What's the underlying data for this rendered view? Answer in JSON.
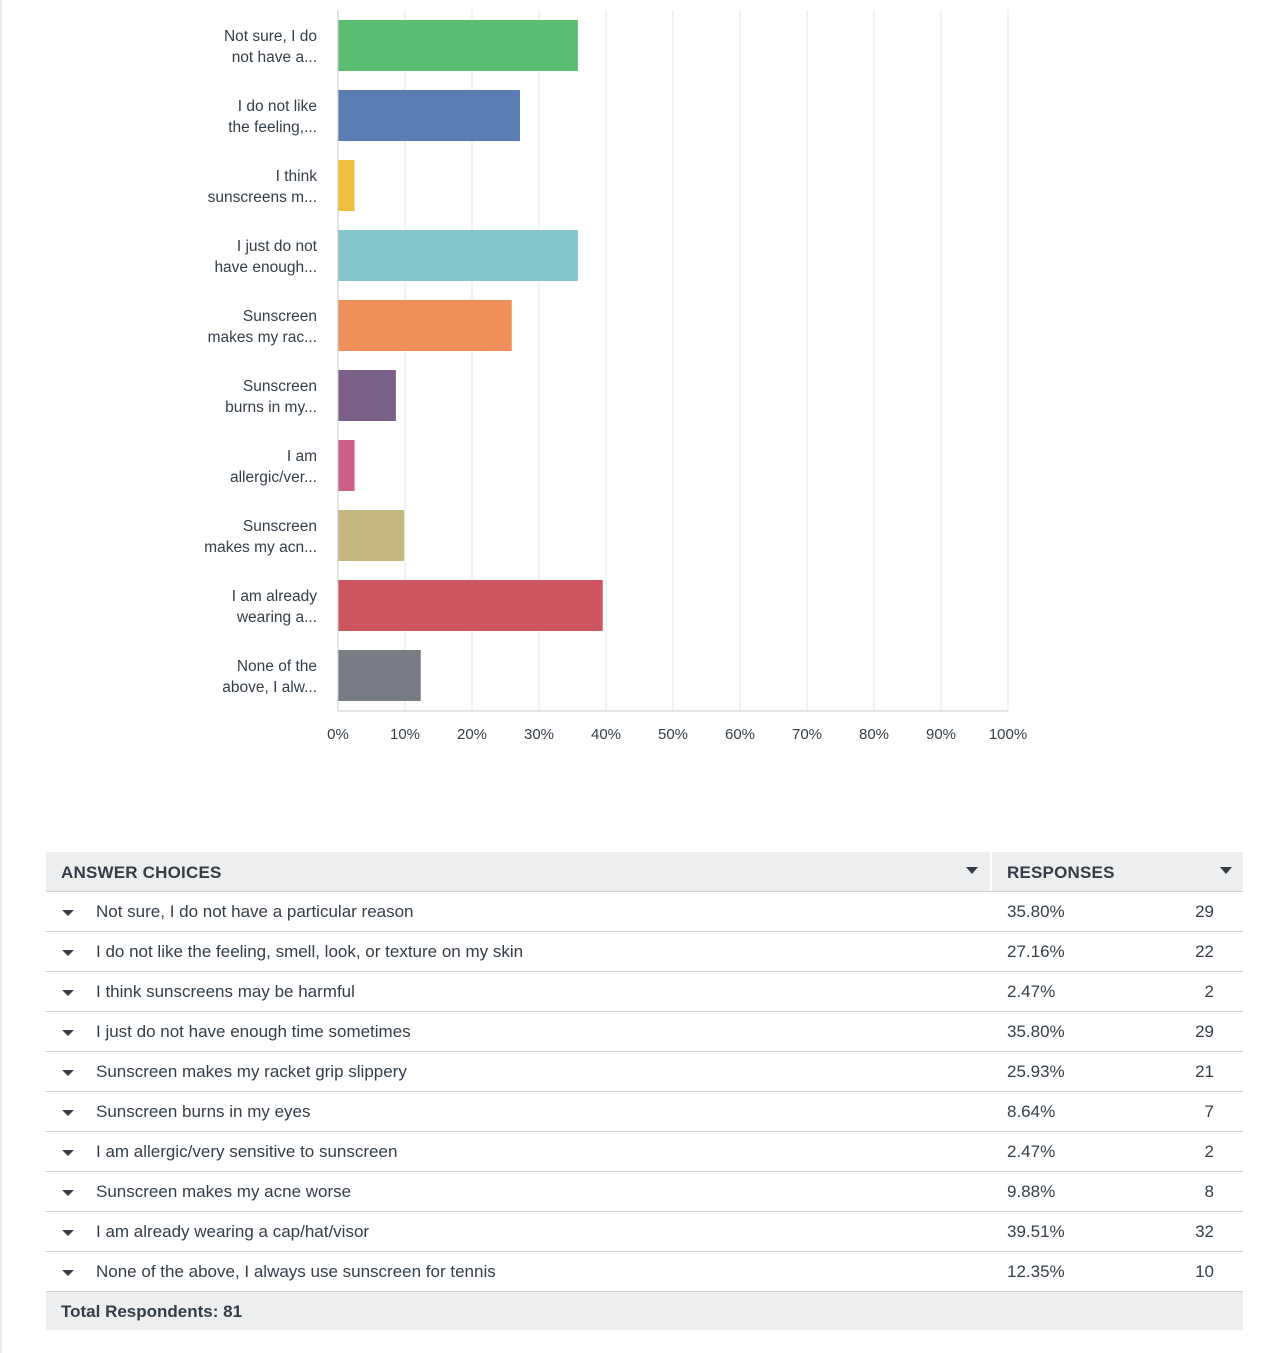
{
  "chart_data": {
    "type": "bar",
    "orientation": "horizontal",
    "categories": [
      "Not sure, I do not have a...",
      "I do not like the feeling,...",
      "I think sunscreens m...",
      "I just do not have enough...",
      "Sunscreen makes my rac...",
      "Sunscreen burns in my...",
      "I am allergic/ver...",
      "Sunscreen makes my acn...",
      "I am already wearing a...",
      "None of the above, I alw..."
    ],
    "category_lines": [
      [
        "Not sure, I do",
        "not have a..."
      ],
      [
        "I do not like",
        "the feeling,..."
      ],
      [
        "I think",
        "sunscreens m..."
      ],
      [
        "I just do not",
        "have enough..."
      ],
      [
        "Sunscreen",
        "makes my rac..."
      ],
      [
        "Sunscreen",
        "burns in my..."
      ],
      [
        "I am",
        "allergic/ver..."
      ],
      [
        "Sunscreen",
        "makes my acn..."
      ],
      [
        "I am already",
        "wearing a..."
      ],
      [
        "None of the",
        "above, I alw..."
      ]
    ],
    "values": [
      35.8,
      27.16,
      2.47,
      35.8,
      25.93,
      8.64,
      2.47,
      9.88,
      39.51,
      12.35
    ],
    "colors": [
      "#5bbd72",
      "#5a7db3",
      "#efbf3f",
      "#84c6cc",
      "#ef905b",
      "#7b6089",
      "#cc6088",
      "#c4b77f",
      "#cc5560",
      "#787d84"
    ],
    "xlim": [
      0,
      100
    ],
    "xticks": [
      "0%",
      "10%",
      "20%",
      "30%",
      "40%",
      "50%",
      "60%",
      "70%",
      "80%",
      "90%",
      "100%"
    ],
    "grid": true,
    "title": "",
    "xlabel": "",
    "ylabel": ""
  },
  "table": {
    "header": {
      "choices": "ANSWER CHOICES",
      "responses": "RESPONSES"
    },
    "rows": [
      {
        "choice": "Not sure, I do not have a particular reason",
        "pct": "35.80%",
        "count": "29"
      },
      {
        "choice": "I do not like the feeling, smell, look, or texture on my skin",
        "pct": "27.16%",
        "count": "22"
      },
      {
        "choice": "I think sunscreens may be harmful",
        "pct": "2.47%",
        "count": "2"
      },
      {
        "choice": "I just do not have enough time sometimes",
        "pct": "35.80%",
        "count": "29"
      },
      {
        "choice": "Sunscreen makes my racket grip slippery",
        "pct": "25.93%",
        "count": "21"
      },
      {
        "choice": "Sunscreen burns in my eyes",
        "pct": "8.64%",
        "count": "7"
      },
      {
        "choice": "I am allergic/very sensitive to sunscreen",
        "pct": "2.47%",
        "count": "2"
      },
      {
        "choice": "Sunscreen makes my acne worse",
        "pct": "9.88%",
        "count": "8"
      },
      {
        "choice": "I am already wearing a cap/hat/visor",
        "pct": "39.51%",
        "count": "32"
      },
      {
        "choice": "None of the above, I always use sunscreen for tennis",
        "pct": "12.35%",
        "count": "10"
      }
    ],
    "footer": "Total Respondents: 81"
  }
}
